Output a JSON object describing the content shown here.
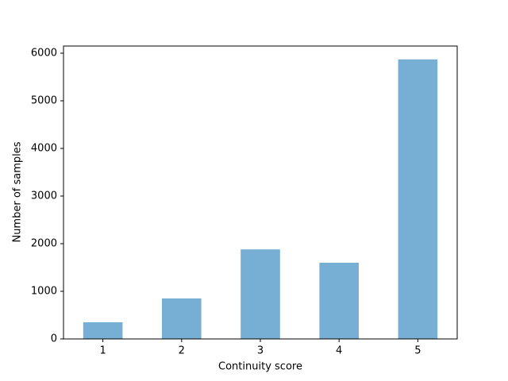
{
  "chart_data": {
    "type": "bar",
    "xlabel": "Continuity score",
    "ylabel": "Number of samples",
    "categories": [
      "1",
      "2",
      "3",
      "4",
      "5"
    ],
    "values": [
      350,
      850,
      1880,
      1600,
      5870
    ],
    "color": "#77aed3",
    "ylim": [
      0,
      6150
    ],
    "yticks": [
      0,
      1000,
      2000,
      3000,
      4000,
      5000,
      6000
    ],
    "grid": false
  }
}
